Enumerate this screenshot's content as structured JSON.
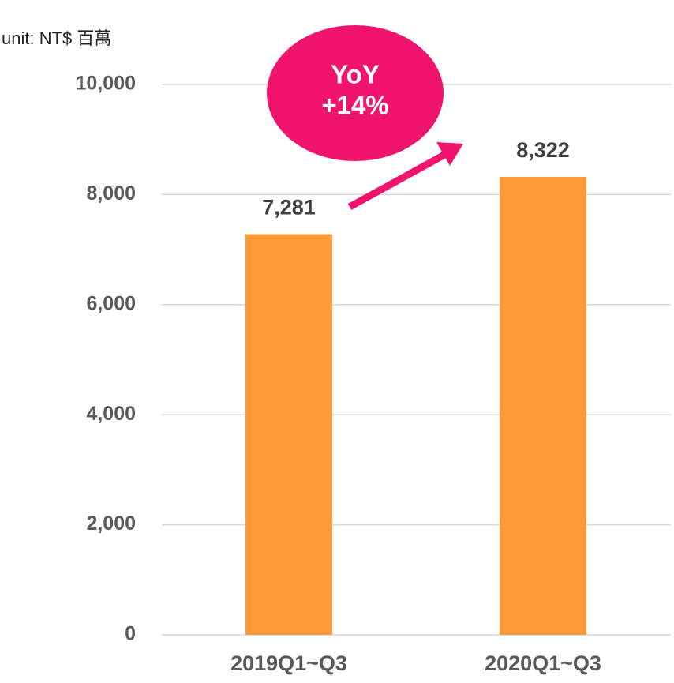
{
  "chart_data": {
    "type": "bar",
    "unit_label": "unit: NT$ 百萬",
    "categories": [
      "2019Q1~Q3",
      "2020Q1~Q3"
    ],
    "values": [
      7281,
      8322
    ],
    "value_labels": [
      "7,281",
      "8,322"
    ],
    "color": "#fd9a37",
    "ylim": [
      0,
      10000
    ],
    "yticks": [
      0,
      {
        "value": 2000,
        "label": "2,000"
      },
      {
        "value": 4000,
        "label": "4,000"
      },
      {
        "value": 6000,
        "label": "6,000"
      },
      {
        "value": 8000,
        "label": "8,000"
      },
      {
        "value": 10000,
        "label": "10,000"
      }
    ],
    "grid": true,
    "annotations": [
      "YoY",
      "+14%"
    ],
    "annotation_color": "#f0146e"
  }
}
